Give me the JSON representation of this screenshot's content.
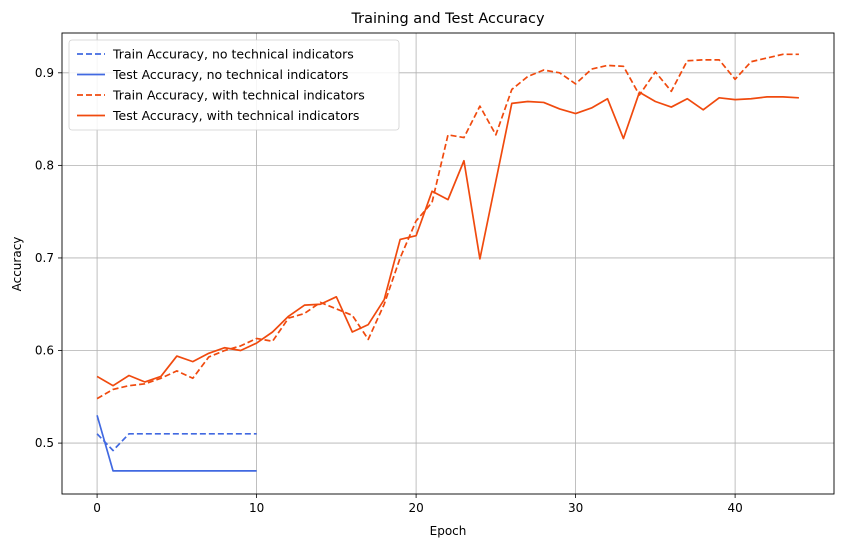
{
  "chart_data": {
    "type": "line",
    "title": "Training and Test Accuracy",
    "xlabel": "Epoch",
    "ylabel": "Accuracy",
    "xlim": [
      -2.2,
      46.2
    ],
    "ylim": [
      0.445,
      0.943
    ],
    "xticks": [
      0,
      10,
      20,
      30,
      40
    ],
    "yticks": [
      0.5,
      0.6,
      0.7,
      0.8,
      0.9
    ],
    "ytick_labels": [
      "0.5",
      "0.6",
      "0.7",
      "0.8",
      "0.9"
    ],
    "grid": true,
    "legend_position": "top-left",
    "series": [
      {
        "name": "Train Accuracy, no technical indicators",
        "color": "#4169e1",
        "dash": "dashed",
        "x": [
          0,
          1,
          2,
          3,
          4,
          5,
          6,
          7,
          8,
          9,
          10
        ],
        "y": [
          0.51,
          0.492,
          0.51,
          0.51,
          0.51,
          0.51,
          0.51,
          0.51,
          0.51,
          0.51,
          0.51
        ]
      },
      {
        "name": "Test Accuracy, no technical indicators",
        "color": "#4169e1",
        "dash": "solid",
        "x": [
          0,
          1,
          2,
          3,
          4,
          5,
          6,
          7,
          8,
          9,
          10
        ],
        "y": [
          0.53,
          0.47,
          0.47,
          0.47,
          0.47,
          0.47,
          0.47,
          0.47,
          0.47,
          0.47,
          0.47
        ]
      },
      {
        "name": "Train Accuracy, with technical indicators",
        "color": "#f04a0e",
        "dash": "dashed",
        "x": [
          0,
          1,
          2,
          3,
          4,
          5,
          6,
          7,
          8,
          9,
          10,
          11,
          12,
          13,
          14,
          15,
          16,
          17,
          18,
          19,
          20,
          21,
          22,
          23,
          24,
          25,
          26,
          27,
          28,
          29,
          30,
          31,
          32,
          33,
          34,
          35,
          36,
          37,
          38,
          39,
          40,
          41,
          42,
          43,
          44
        ],
        "y": [
          0.548,
          0.558,
          0.562,
          0.564,
          0.57,
          0.578,
          0.57,
          0.593,
          0.6,
          0.605,
          0.613,
          0.61,
          0.635,
          0.64,
          0.652,
          0.645,
          0.638,
          0.612,
          0.65,
          0.7,
          0.74,
          0.76,
          0.833,
          0.83,
          0.864,
          0.833,
          0.882,
          0.896,
          0.903,
          0.9,
          0.888,
          0.904,
          0.908,
          0.907,
          0.876,
          0.901,
          0.88,
          0.913,
          0.914,
          0.914,
          0.893,
          0.912,
          0.916,
          0.92,
          0.92
        ]
      },
      {
        "name": "Test Accuracy, with technical indicators",
        "color": "#f04a0e",
        "dash": "solid",
        "x": [
          0,
          1,
          2,
          3,
          4,
          5,
          6,
          7,
          8,
          9,
          10,
          11,
          12,
          13,
          14,
          15,
          16,
          17,
          18,
          19,
          20,
          21,
          22,
          23,
          24,
          25,
          26,
          27,
          28,
          29,
          30,
          31,
          32,
          33,
          34,
          35,
          36,
          37,
          38,
          39,
          40,
          41,
          42,
          43,
          44
        ],
        "y": [
          0.572,
          0.562,
          0.573,
          0.566,
          0.572,
          0.594,
          0.588,
          0.597,
          0.603,
          0.6,
          0.608,
          0.62,
          0.637,
          0.649,
          0.65,
          0.658,
          0.62,
          0.628,
          0.655,
          0.72,
          0.724,
          0.772,
          0.763,
          0.805,
          0.699,
          0.783,
          0.867,
          0.869,
          0.868,
          0.861,
          0.856,
          0.862,
          0.872,
          0.829,
          0.879,
          0.869,
          0.863,
          0.872,
          0.86,
          0.873,
          0.871,
          0.872,
          0.874,
          0.874,
          0.873
        ]
      }
    ]
  }
}
